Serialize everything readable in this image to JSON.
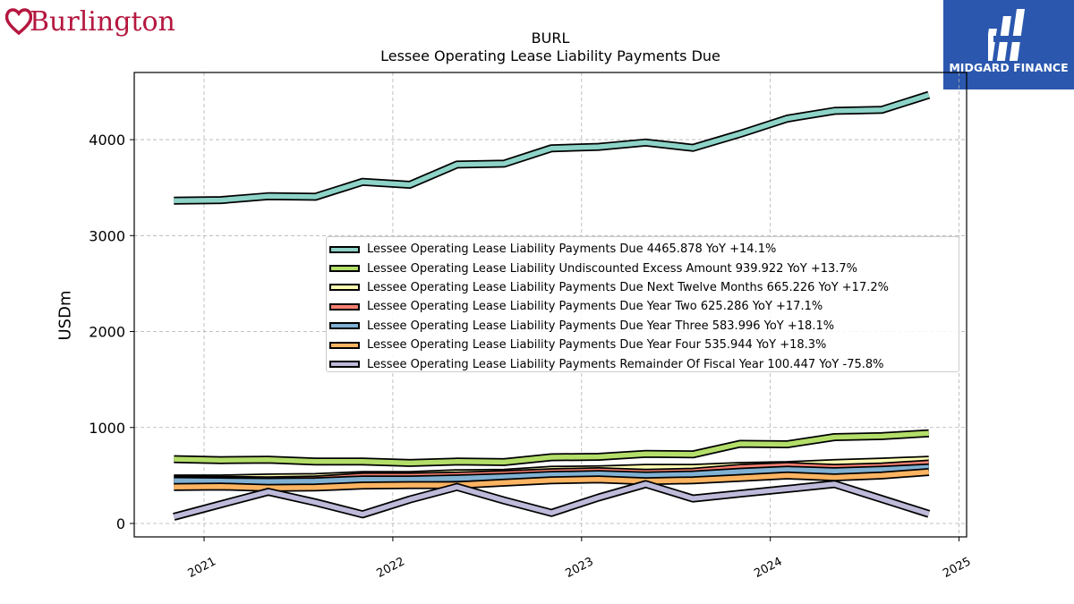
{
  "brand": {
    "logo_text": "Burlington",
    "partner_logo_text": "MIDGARD FINANCE"
  },
  "chart_data": {
    "type": "line",
    "title": "BURL",
    "subtitle": "Lessee Operating Lease Liability Payments Due",
    "ylabel": "USDm",
    "xlabel": "",
    "x_tick_labels": [
      "2021",
      "2022",
      "2023",
      "2024",
      "2025"
    ],
    "y_ticks": [
      0,
      1000,
      2000,
      3000,
      4000
    ],
    "xlim": [
      2020.63,
      2025.04
    ],
    "ylim": [
      -140,
      4700
    ],
    "grid": true,
    "legend_position": "center-right",
    "x": [
      2020.84,
      2021.09,
      2021.34,
      2021.59,
      2021.84,
      2022.09,
      2022.34,
      2022.59,
      2022.84,
      2023.09,
      2023.34,
      2023.59,
      2023.84,
      2024.09,
      2024.34,
      2024.59,
      2024.84
    ],
    "series": [
      {
        "name": "Lessee Operating Lease Liability Payments Due",
        "legend_label": "Lessee Operating Lease Liability Payments Due  4465.878 YoY +14.1%",
        "color": "#8dd3c7",
        "values": [
          3365,
          3370,
          3410,
          3405,
          3560,
          3530,
          3740,
          3750,
          3910,
          3925,
          3970,
          3915,
          4060,
          4220,
          4300,
          4310,
          4466
        ]
      },
      {
        "name": "Lessee Operating Lease Liability Undiscounted Excess Amount",
        "legend_label": "Lessee Operating Lease Liability Undiscounted Excess Amount  939.922 YoY +13.7%",
        "color": "#b3de69",
        "values": [
          670,
          660,
          665,
          645,
          645,
          630,
          645,
          640,
          690,
          695,
          725,
          720,
          830,
          825,
          900,
          910,
          940
        ]
      },
      {
        "name": "Lessee Operating Lease Liability Payments Due Next Twelve Months",
        "legend_label": "Lessee Operating Lease Liability Payments Due Next Twelve Months  665.226 YoY +17.2%",
        "color": "#ffffb3",
        "values": [
          470,
          470,
          480,
          485,
          505,
          505,
          525,
          530,
          560,
          565,
          580,
          580,
          600,
          610,
          630,
          645,
          665
        ]
      },
      {
        "name": "Lessee Operating Lease Liability Payments Due Year Two",
        "legend_label": "Lessee Operating Lease Liability Payments Due Year Two  625.286 YoY +17.1%",
        "color": "#fb8072",
        "values": [
          460,
          455,
          450,
          460,
          490,
          490,
          500,
          515,
          535,
          545,
          530,
          540,
          580,
          600,
          580,
          595,
          625
        ]
      },
      {
        "name": "Lessee Operating Lease Liability Payments Due Year Three",
        "legend_label": "Lessee Operating Lease Liability Payments Due Year Three  583.996 YoY +18.1%",
        "color": "#80b1d3",
        "values": [
          445,
          440,
          435,
          440,
          460,
          460,
          470,
          485,
          505,
          515,
          500,
          510,
          540,
          560,
          545,
          560,
          584
        ]
      },
      {
        "name": "Lessee Operating Lease Liability Payments Due Year Four",
        "legend_label": "Lessee Operating Lease Liability Payments Due Year Four  535.944 YoY +18.3%",
        "color": "#fdb462",
        "values": [
          380,
          385,
          370,
          375,
          395,
          400,
          400,
          425,
          450,
          460,
          440,
          450,
          475,
          500,
          480,
          500,
          536
        ]
      },
      {
        "name": "Lessee Operating Lease Liability Payments Remainder Of Fiscal Year",
        "legend_label": "Lessee Operating Lease Liability Payments Remainder Of Fiscal Year  100.447 YoY -75.8%",
        "color": "#bebada",
        "values": [
          70,
          200,
          330,
          220,
          95,
          250,
          380,
          240,
          110,
          270,
          410,
          260,
          310,
          360,
          410,
          255,
          100
        ]
      }
    ]
  }
}
